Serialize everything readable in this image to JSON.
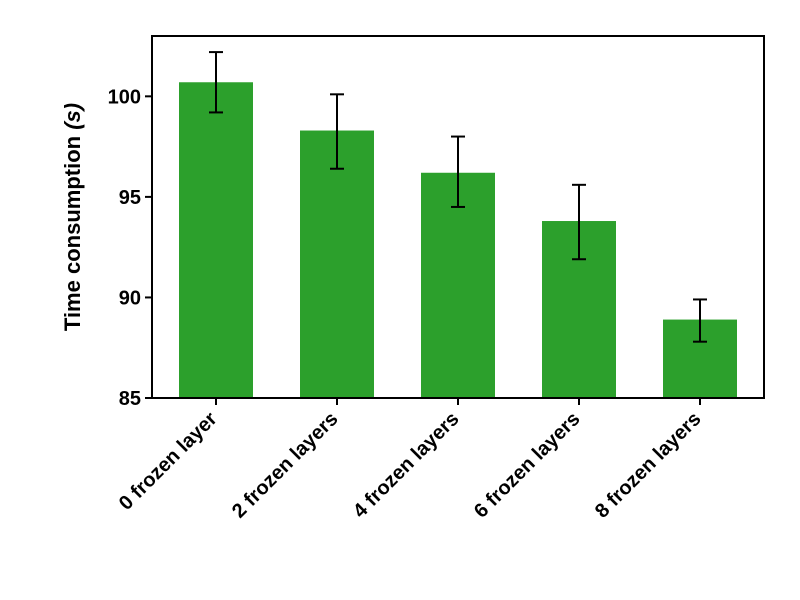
{
  "chart_data": {
    "type": "bar",
    "categories": [
      "0 frozen layer",
      "2 frozen layers",
      "4 frozen layers",
      "6 frozen layers",
      "8 frozen layers"
    ],
    "values": [
      100.7,
      98.3,
      96.2,
      93.8,
      88.9
    ],
    "error_low": [
      99.2,
      96.4,
      94.5,
      91.9,
      87.8
    ],
    "error_high": [
      102.2,
      100.1,
      98.0,
      95.6,
      89.9
    ],
    "ylabel": "Time consumption",
    "ylabel_unit": "(s)",
    "ylim": [
      85,
      103
    ],
    "yticks": [
      85,
      90,
      95,
      100
    ],
    "bar_color": "#2ca02c",
    "grid": false,
    "legend": "none"
  }
}
